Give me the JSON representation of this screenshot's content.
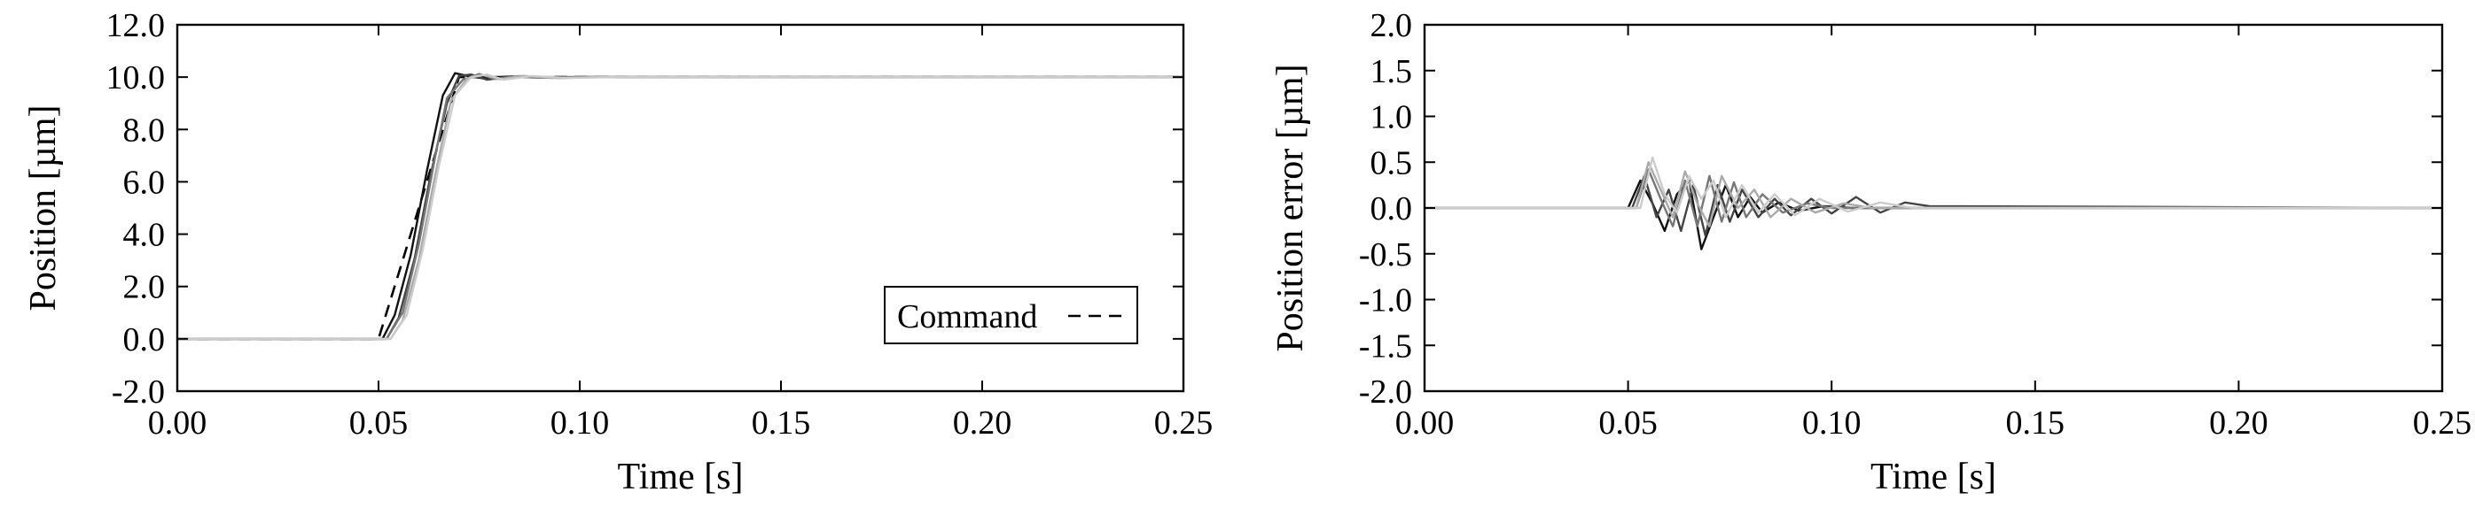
{
  "chart_data": [
    {
      "type": "line",
      "title": "",
      "xlabel": "Time [s]",
      "ylabel": "Position [µm]",
      "xlim": [
        0.0,
        0.25
      ],
      "ylim": [
        -2.0,
        12.0
      ],
      "xticks": [
        0.0,
        0.05,
        0.1,
        0.15,
        0.2,
        0.25
      ],
      "yticks": [
        -2.0,
        0.0,
        2.0,
        4.0,
        6.0,
        8.0,
        10.0,
        12.0
      ],
      "xtick_labels": [
        "0.00",
        "0.05",
        "0.10",
        "0.15",
        "0.20",
        "0.25"
      ],
      "ytick_labels": [
        "-2.0",
        "0.0",
        "2.0",
        "4.0",
        "6.0",
        "8.0",
        "10.0",
        "12.0"
      ],
      "grid": false,
      "legend": {
        "placement": "lower-right",
        "entries": [
          {
            "label": "Command",
            "style": "dashed",
            "color": "#000000"
          }
        ]
      },
      "series": [
        {
          "name": "Command",
          "style": "dashed",
          "color": "#000000",
          "x": [
            0.0,
            0.05,
            0.07,
            0.25
          ],
          "y": [
            0.0,
            0.0,
            10.0,
            10.0
          ]
        },
        {
          "style": "solid",
          "color": "#111111",
          "x": [
            0.0,
            0.051,
            0.054,
            0.058,
            0.062,
            0.066,
            0.069,
            0.072,
            0.076,
            0.082,
            0.09,
            0.1,
            0.25
          ],
          "y": [
            0.0,
            0.0,
            0.9,
            3.2,
            6.4,
            9.3,
            10.15,
            10.05,
            9.95,
            10.02,
            10.0,
            10.0,
            10.0
          ]
        },
        {
          "style": "solid",
          "color": "#444444",
          "x": [
            0.0,
            0.052,
            0.055,
            0.059,
            0.063,
            0.067,
            0.07,
            0.073,
            0.077,
            0.083,
            0.09,
            0.1,
            0.25
          ],
          "y": [
            0.0,
            0.0,
            0.8,
            3.1,
            6.3,
            9.0,
            10.05,
            10.1,
            9.9,
            10.03,
            9.98,
            10.0,
            10.0
          ]
        },
        {
          "style": "solid",
          "color": "#777777",
          "x": [
            0.0,
            0.052,
            0.056,
            0.06,
            0.064,
            0.067,
            0.071,
            0.075,
            0.079,
            0.085,
            0.093,
            0.1,
            0.25
          ],
          "y": [
            0.0,
            0.0,
            1.0,
            3.6,
            6.9,
            9.2,
            9.9,
            10.12,
            9.93,
            10.04,
            9.97,
            10.0,
            10.0
          ]
        },
        {
          "style": "solid",
          "color": "#aaaaaa",
          "x": [
            0.0,
            0.053,
            0.056,
            0.06,
            0.064,
            0.068,
            0.072,
            0.076,
            0.08,
            0.086,
            0.095,
            0.105,
            0.25
          ],
          "y": [
            0.0,
            0.0,
            0.7,
            3.0,
            6.2,
            9.1,
            9.95,
            10.08,
            9.92,
            10.05,
            9.96,
            10.0,
            10.0
          ]
        },
        {
          "style": "solid",
          "color": "#cccccc",
          "x": [
            0.0,
            0.053,
            0.057,
            0.061,
            0.065,
            0.069,
            0.073,
            0.077,
            0.081,
            0.088,
            0.097,
            0.11,
            0.25
          ],
          "y": [
            0.0,
            0.0,
            0.9,
            3.4,
            6.6,
            9.3,
            10.0,
            10.1,
            9.9,
            10.04,
            9.97,
            10.0,
            10.0
          ]
        }
      ]
    },
    {
      "type": "line",
      "title": "",
      "xlabel": "Time [s]",
      "ylabel": "Position error [µm]",
      "xlim": [
        0.0,
        0.25
      ],
      "ylim": [
        -2.0,
        2.0
      ],
      "xticks": [
        0.0,
        0.05,
        0.1,
        0.15,
        0.2,
        0.25
      ],
      "yticks": [
        -2.0,
        -1.5,
        -1.0,
        -0.5,
        0.0,
        0.5,
        1.0,
        1.5,
        2.0
      ],
      "xtick_labels": [
        "0.00",
        "0.05",
        "0.10",
        "0.15",
        "0.20",
        "0.25"
      ],
      "ytick_labels": [
        "-2.0",
        "-1.5",
        "-1.0",
        "-0.5",
        "0.0",
        "0.5",
        "1.0",
        "1.5",
        "2.0"
      ],
      "grid": false,
      "series": [
        {
          "style": "solid",
          "color": "#111111",
          "x": [
            0.0,
            0.05,
            0.053,
            0.056,
            0.059,
            0.062,
            0.065,
            0.068,
            0.071,
            0.074,
            0.077,
            0.08,
            0.083,
            0.087,
            0.092,
            0.098,
            0.105,
            0.25
          ],
          "y": [
            0.0,
            0.0,
            0.3,
            0.05,
            -0.25,
            0.15,
            0.3,
            -0.45,
            -0.1,
            0.25,
            -0.1,
            0.12,
            -0.05,
            0.06,
            -0.03,
            0.02,
            0.0,
            0.0
          ]
        },
        {
          "style": "solid",
          "color": "#444444",
          "x": [
            0.0,
            0.051,
            0.054,
            0.057,
            0.06,
            0.063,
            0.066,
            0.069,
            0.072,
            0.075,
            0.078,
            0.082,
            0.086,
            0.09,
            0.095,
            0.1,
            0.106,
            0.112,
            0.118,
            0.124,
            0.25
          ],
          "y": [
            0.0,
            0.0,
            0.35,
            -0.1,
            0.2,
            -0.25,
            0.25,
            -0.3,
            0.25,
            -0.15,
            0.2,
            -0.1,
            0.1,
            -0.08,
            0.1,
            -0.06,
            0.12,
            -0.05,
            0.06,
            0.02,
            0.0
          ]
        },
        {
          "style": "solid",
          "color": "#777777",
          "x": [
            0.0,
            0.052,
            0.055,
            0.058,
            0.061,
            0.064,
            0.067,
            0.07,
            0.073,
            0.076,
            0.079,
            0.083,
            0.088,
            0.094,
            0.1,
            0.25
          ],
          "y": [
            0.0,
            0.0,
            0.42,
            0.1,
            -0.2,
            0.3,
            -0.2,
            0.35,
            -0.15,
            0.28,
            -0.1,
            0.15,
            -0.05,
            0.05,
            0.0,
            0.0
          ]
        },
        {
          "style": "solid",
          "color": "#aaaaaa",
          "x": [
            0.0,
            0.052,
            0.055,
            0.058,
            0.061,
            0.064,
            0.067,
            0.07,
            0.073,
            0.077,
            0.081,
            0.085,
            0.09,
            0.096,
            0.103,
            0.11,
            0.25
          ],
          "y": [
            0.0,
            0.0,
            0.5,
            0.2,
            -0.1,
            0.4,
            0.05,
            -0.2,
            0.35,
            0.0,
            0.2,
            -0.1,
            0.1,
            -0.05,
            0.05,
            0.0,
            0.0
          ]
        },
        {
          "style": "solid",
          "color": "#cccccc",
          "x": [
            0.0,
            0.053,
            0.056,
            0.059,
            0.062,
            0.065,
            0.068,
            0.071,
            0.074,
            0.078,
            0.082,
            0.086,
            0.091,
            0.097,
            0.104,
            0.112,
            0.12,
            0.25
          ],
          "y": [
            0.0,
            0.0,
            0.55,
            0.15,
            -0.05,
            0.35,
            0.1,
            0.3,
            -0.1,
            0.25,
            -0.05,
            0.15,
            -0.08,
            0.1,
            -0.04,
            0.06,
            0.0,
            0.0
          ]
        }
      ]
    }
  ]
}
